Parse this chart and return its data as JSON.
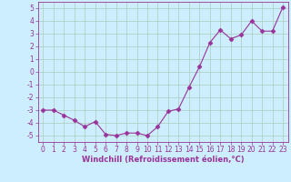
{
  "x": [
    0,
    1,
    2,
    3,
    4,
    5,
    6,
    7,
    8,
    9,
    10,
    11,
    12,
    13,
    14,
    15,
    16,
    17,
    18,
    19,
    20,
    21,
    22,
    23
  ],
  "y": [
    -3.0,
    -3.0,
    -3.4,
    -3.8,
    -4.3,
    -3.9,
    -4.9,
    -5.0,
    -4.8,
    -4.8,
    -5.0,
    -4.3,
    -3.1,
    -2.9,
    -1.2,
    0.4,
    2.3,
    3.3,
    2.6,
    2.9,
    4.0,
    3.2,
    3.2,
    5.1
  ],
  "xlabel": "Windchill (Refroidissement éolien,°C)",
  "ylim": [
    -5.5,
    5.5
  ],
  "xlim": [
    -0.5,
    23.5
  ],
  "yticks": [
    -5,
    -4,
    -3,
    -2,
    -1,
    0,
    1,
    2,
    3,
    4,
    5
  ],
  "xticks": [
    0,
    1,
    2,
    3,
    4,
    5,
    6,
    7,
    8,
    9,
    10,
    11,
    12,
    13,
    14,
    15,
    16,
    17,
    18,
    19,
    20,
    21,
    22,
    23
  ],
  "line_color": "#993399",
  "marker": "D",
  "marker_size": 2.5,
  "line_width": 0.8,
  "bg_color": "#cceeff",
  "grid_color": "#aaccbb",
  "axis_color": "#993399",
  "tick_fontsize": 5.5,
  "xlabel_fontsize": 6.0,
  "xlabel_bold": true
}
